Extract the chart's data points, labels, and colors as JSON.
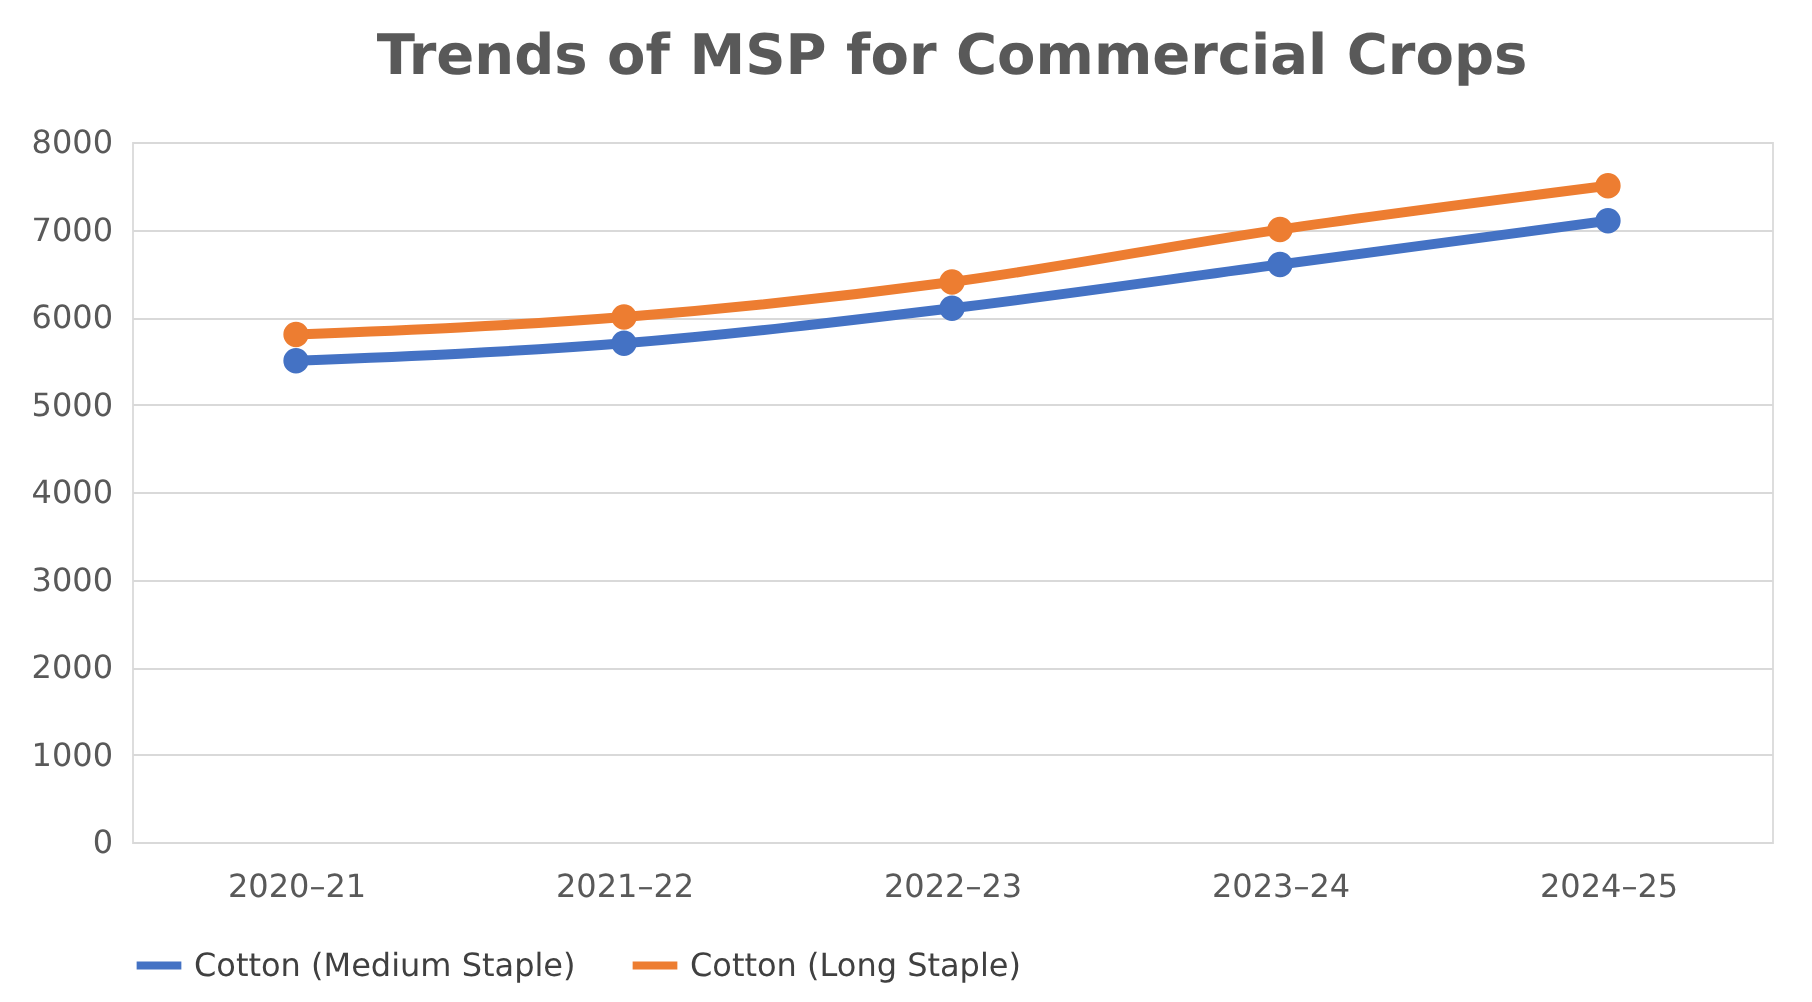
{
  "chart_data": {
    "type": "line",
    "title": "Trends of MSP for Commercial Crops",
    "categories": [
      "2020–21",
      "2021–22",
      "2022–23",
      "2023–24",
      "2024–25"
    ],
    "series": [
      {
        "name": "Cotton (Medium Staple)",
        "color": "#4472c4",
        "values": [
          5500,
          5700,
          6100,
          6600,
          7100
        ]
      },
      {
        "name": "Cotton (Long Staple)",
        "color": "#ed7d31",
        "values": [
          5800,
          6000,
          6400,
          7000,
          7500
        ]
      }
    ],
    "ylim": [
      0,
      8000
    ],
    "yticks": [
      0,
      1000,
      2000,
      3000,
      4000,
      5000,
      6000,
      7000,
      8000
    ],
    "grid": "y",
    "legend": "bottom",
    "marker": "circle",
    "line_style": "solid"
  }
}
